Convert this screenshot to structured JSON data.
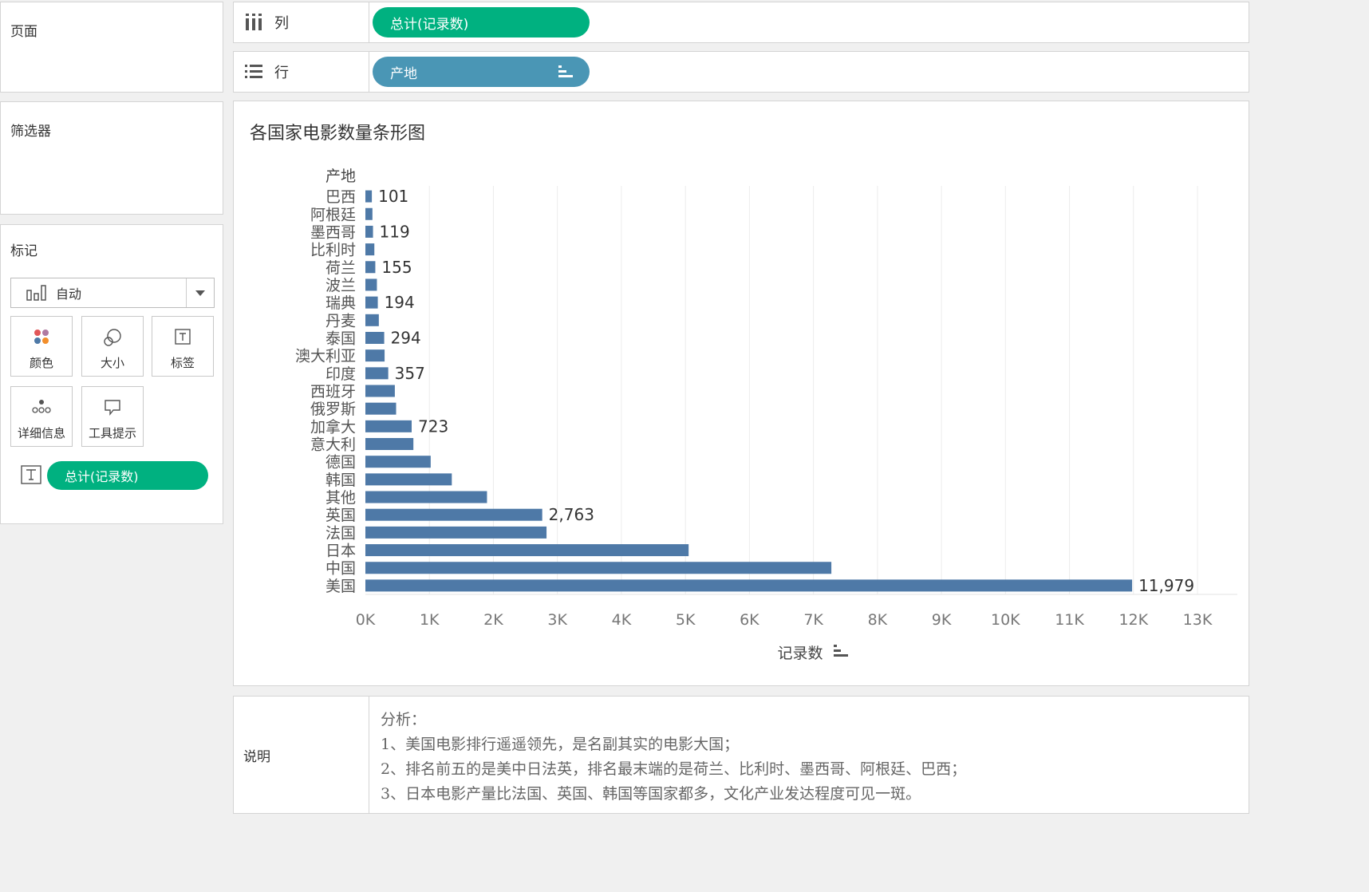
{
  "left": {
    "pages_title": "页面",
    "filters_title": "筛选器",
    "marks_title": "标记",
    "mark_type": "自动",
    "tiles": [
      {
        "label": "颜色",
        "icon": "color-dots-icon"
      },
      {
        "label": "大小",
        "icon": "size-icon"
      },
      {
        "label": "标签",
        "icon": "label-icon"
      },
      {
        "label": "详细信息",
        "icon": "detail-icon"
      },
      {
        "label": "工具提示",
        "icon": "tooltip-icon"
      }
    ],
    "label_pill": "总计(记录数)"
  },
  "shelves": {
    "columns_label": "列",
    "columns_pill": "总计(记录数)",
    "rows_label": "行",
    "rows_pill": "产地"
  },
  "colors": {
    "bar": "#4e79a7",
    "green_pill": "#00b180",
    "blue_pill": "#4a96b5"
  },
  "chart_data": {
    "type": "bar",
    "orientation": "horizontal",
    "title": "各国家电影数量条形图",
    "ylabel": "产地",
    "xlabel": "记录数",
    "categories": [
      "巴西",
      "阿根廷",
      "墨西哥",
      "比利时",
      "荷兰",
      "波兰",
      "瑞典",
      "丹麦",
      "泰国",
      "澳大利亚",
      "印度",
      "西班牙",
      "俄罗斯",
      "加拿大",
      "意大利",
      "德国",
      "韩国",
      "其他",
      "英国",
      "法国",
      "日本",
      "中国",
      "美国"
    ],
    "values": [
      101,
      110,
      119,
      140,
      155,
      180,
      194,
      210,
      294,
      300,
      357,
      460,
      480,
      723,
      750,
      1020,
      1350,
      1900,
      2763,
      2830,
      5050,
      7280,
      11979
    ],
    "labeled": [
      true,
      false,
      true,
      false,
      true,
      false,
      true,
      false,
      true,
      false,
      true,
      false,
      false,
      true,
      false,
      false,
      false,
      false,
      true,
      false,
      false,
      false,
      true
    ],
    "labels": [
      "101",
      "",
      "119",
      "",
      "155",
      "",
      "194",
      "",
      "294",
      "",
      "357",
      "",
      "",
      "723",
      "",
      "",
      "",
      "",
      "2,763",
      "",
      "",
      "",
      "11,979"
    ],
    "xlim": [
      0,
      13000
    ],
    "xticks": [
      "0K",
      "1K",
      "2K",
      "3K",
      "4K",
      "5K",
      "6K",
      "7K",
      "8K",
      "9K",
      "10K",
      "11K",
      "12K",
      "13K"
    ],
    "grid": true,
    "sorted": "descending"
  },
  "notes": {
    "label": "说明",
    "lines": [
      "分析：",
      "1、美国电影排行遥遥领先，是名副其实的电影大国；",
      "2、排名前五的是美中日法英，排名最末端的是荷兰、比利时、墨西哥、阿根廷、巴西；",
      "3、日本电影产量比法国、英国、韩国等国家都多，文化产业发达程度可见一斑。"
    ]
  }
}
